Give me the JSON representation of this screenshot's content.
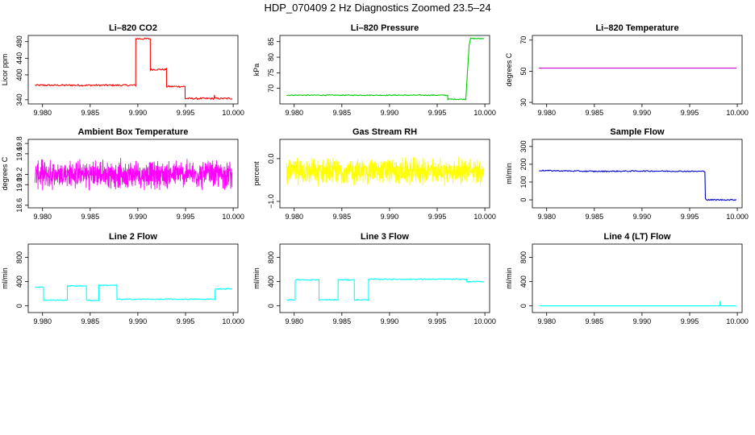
{
  "page": {
    "title": "HDP_070409  2 Hz Diagnostics Zoomed 23.5–24"
  },
  "chart_data": [
    {
      "type": "line",
      "title": "Li–820 CO2",
      "ylabel": "Licor ppm",
      "color": "#ff0000",
      "xlim": [
        9.9785,
        10.0005
      ],
      "ylim": [
        330,
        495
      ],
      "xticks": [
        9.98,
        9.985,
        9.99,
        9.995,
        10.0
      ],
      "yticks": [
        340,
        400,
        440,
        480
      ],
      "xtick_labels": [
        "9.980",
        "9.985",
        "9.990",
        "9.995",
        "10.000"
      ],
      "ytick_labels": [
        "340",
        "400",
        "440",
        "480"
      ],
      "noise": 2.0,
      "series": [
        {
          "x": [
            9.9792,
            9.98977,
            9.98978,
            9.9913,
            9.99131,
            9.993,
            9.99301,
            9.99495,
            9.99496,
            9.998,
            9.99803,
            9.99808,
            9.9999
          ],
          "values": [
            375,
            375,
            487,
            487,
            413,
            413,
            372,
            372,
            343,
            343,
            352,
            343,
            343
          ]
        }
      ]
    },
    {
      "type": "line",
      "title": "Li–820 Pressure",
      "ylabel": "kPa",
      "color": "#00cc00",
      "xlim": [
        9.9785,
        10.0005
      ],
      "ylim": [
        65,
        87
      ],
      "xticks": [
        9.98,
        9.985,
        9.99,
        9.995,
        10.0
      ],
      "yticks": [
        70,
        75,
        80,
        85
      ],
      "xtick_labels": [
        "9.980",
        "9.985",
        "9.990",
        "9.995",
        "10.000"
      ],
      "ytick_labels": [
        "70",
        "75",
        "80",
        "85"
      ],
      "noise": 0.15,
      "series": [
        {
          "x": [
            9.9792,
            9.9961,
            9.99612,
            9.998,
            9.99835,
            9.9985,
            9.9988,
            9.9999
          ],
          "values": [
            67.8,
            67.8,
            66.5,
            66.5,
            84.0,
            86.0,
            86.0,
            86.0
          ]
        }
      ]
    },
    {
      "type": "line",
      "title": "Li–820 Temperature",
      "ylabel": "degrees C",
      "color": "#cc00cc",
      "xlim": [
        9.9785,
        10.0005
      ],
      "ylim": [
        29,
        73
      ],
      "xticks": [
        9.98,
        9.985,
        9.99,
        9.995,
        10.0
      ],
      "yticks": [
        30,
        50,
        70
      ],
      "xtick_labels": [
        "9.980",
        "9.985",
        "9.990",
        "9.995",
        "10.000"
      ],
      "ytick_labels": [
        "30",
        "50",
        "70"
      ],
      "noise": 0,
      "series": [
        {
          "x": [
            9.9792,
            9.9999
          ],
          "values": [
            52.0,
            52.0
          ]
        }
      ]
    },
    {
      "type": "line",
      "title": "Ambient Box Temperature",
      "ylabel": "degrees C",
      "color": "#ff00ff",
      "xlim": [
        9.9785,
        10.0005
      ],
      "ylim": [
        18.55,
        19.88
      ],
      "xticks": [
        9.98,
        9.985,
        9.99,
        9.995,
        10.0
      ],
      "yticks": [
        18.6,
        19.0,
        19.2,
        19.6,
        19.8
      ],
      "xtick_labels": [
        "9.980",
        "9.985",
        "9.990",
        "9.995",
        "10.000"
      ],
      "ytick_labels": [
        "18.6",
        "19.0",
        "19.2",
        "19.6",
        "19.8"
      ],
      "noise": 0.25,
      "dense": true,
      "series": [
        {
          "x": [
            9.9792,
            9.9999
          ],
          "values": [
            19.2,
            19.2
          ]
        }
      ]
    },
    {
      "type": "line",
      "title": "Gas Stream RH",
      "ylabel": "percent",
      "color": "#ffff00",
      "xlim": [
        9.9785,
        10.0005
      ],
      "ylim": [
        -1.15,
        0.45
      ],
      "xticks": [
        9.98,
        9.985,
        9.99,
        9.995,
        10.0
      ],
      "yticks": [
        -1.0,
        0.0
      ],
      "xtick_labels": [
        "9.980",
        "9.985",
        "9.990",
        "9.995",
        "10.000"
      ],
      "ytick_labels": [
        "−1.0",
        "0.0"
      ],
      "noise": 0.28,
      "dense": true,
      "series": [
        {
          "x": [
            9.9792,
            9.9999
          ],
          "values": [
            -0.3,
            -0.3
          ]
        }
      ]
    },
    {
      "type": "line",
      "title": "Sample Flow",
      "ylabel": "ml/min",
      "color": "#0000cc",
      "xlim": [
        9.9785,
        10.0005
      ],
      "ylim": [
        -45,
        340
      ],
      "xticks": [
        9.98,
        9.985,
        9.99,
        9.995,
        10.0
      ],
      "yticks": [
        0,
        100,
        200,
        300
      ],
      "xtick_labels": [
        "9.980",
        "9.985",
        "9.990",
        "9.995",
        "10.000"
      ],
      "ytick_labels": [
        "0",
        "100",
        "200",
        "300"
      ],
      "noise": 3,
      "series": [
        {
          "x": [
            9.9792,
            9.985,
            9.99,
            9.9966,
            9.99665,
            9.99675,
            9.9999
          ],
          "values": [
            165,
            160,
            162,
            160,
            10,
            0,
            0
          ]
        }
      ]
    },
    {
      "type": "line",
      "title": "Line 2 Flow",
      "ylabel": "ml/min",
      "color": "#00ffff",
      "xlim": [
        9.9785,
        10.0005
      ],
      "ylim": [
        -110,
        1020
      ],
      "xticks": [
        9.98,
        9.985,
        9.99,
        9.995,
        10.0
      ],
      "yticks": [
        0,
        400,
        800
      ],
      "xtick_labels": [
        "9.980",
        "9.985",
        "9.990",
        "9.995",
        "10.000"
      ],
      "ytick_labels": [
        "0",
        "400",
        "800"
      ],
      "noise": 8,
      "series": [
        {
          "x": [
            9.9792,
            9.9801,
            9.98011,
            9.9826,
            9.98261,
            9.9846,
            9.98461,
            9.9859,
            9.98591,
            9.9878,
            9.98781,
            9.9981,
            9.99811,
            9.9999
          ],
          "values": [
            310,
            310,
            95,
            95,
            330,
            330,
            90,
            90,
            340,
            340,
            110,
            110,
            280,
            280
          ]
        }
      ]
    },
    {
      "type": "line",
      "title": "Line 3 Flow",
      "ylabel": "ml/min",
      "color": "#00ffff",
      "xlim": [
        9.9785,
        10.0005
      ],
      "ylim": [
        -110,
        1020
      ],
      "xticks": [
        9.98,
        9.985,
        9.99,
        9.995,
        10.0
      ],
      "yticks": [
        0,
        400,
        800
      ],
      "xtick_labels": [
        "9.980",
        "9.985",
        "9.990",
        "9.995",
        "10.000"
      ],
      "ytick_labels": [
        "0",
        "400",
        "800"
      ],
      "noise": 8,
      "series": [
        {
          "x": [
            9.9792,
            9.9801,
            9.98011,
            9.9826,
            9.98261,
            9.9846,
            9.98461,
            9.9863,
            9.98631,
            9.9878,
            9.98781,
            9.9981,
            9.99811,
            9.9999
          ],
          "values": [
            100,
            100,
            430,
            430,
            100,
            100,
            430,
            430,
            100,
            100,
            440,
            440,
            400,
            400
          ]
        }
      ]
    },
    {
      "type": "line",
      "title": "Line 4 (LT) Flow",
      "ylabel": "ml/min",
      "color": "#00ffff",
      "xlim": [
        9.9785,
        10.0005
      ],
      "ylim": [
        -110,
        1020
      ],
      "xticks": [
        9.98,
        9.985,
        9.99,
        9.995,
        10.0
      ],
      "yticks": [
        0,
        400,
        800
      ],
      "xtick_labels": [
        "9.980",
        "9.985",
        "9.990",
        "9.995",
        "10.000"
      ],
      "ytick_labels": [
        "0",
        "400",
        "800"
      ],
      "noise": 0,
      "series": [
        {
          "x": [
            9.9792,
            9.99815,
            9.9982,
            9.99825,
            9.9999
          ],
          "values": [
            0,
            0,
            80,
            0,
            0
          ]
        }
      ]
    }
  ]
}
